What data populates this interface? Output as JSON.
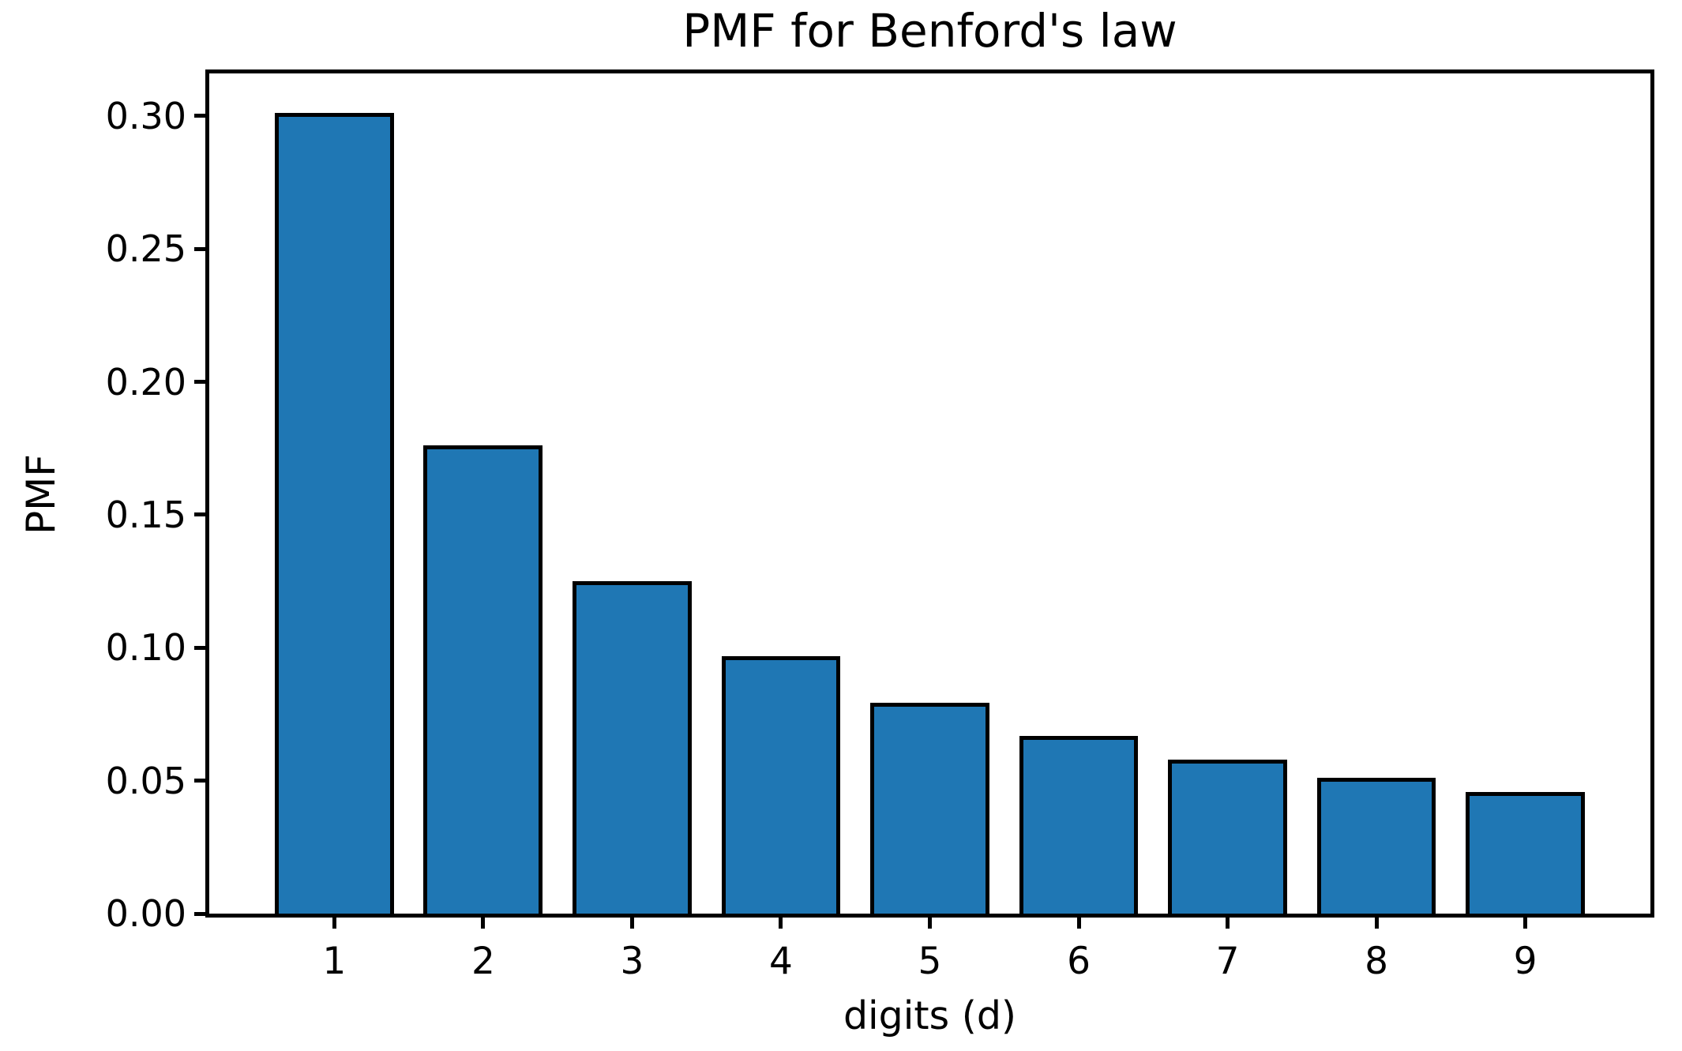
{
  "chart_data": {
    "type": "bar",
    "title": "PMF for Benford's law",
    "xlabel": "digits (d)",
    "ylabel": "PMF",
    "categories": [
      1,
      2,
      3,
      4,
      5,
      6,
      7,
      8,
      9
    ],
    "values": [
      0.30103,
      0.17609,
      0.12494,
      0.09691,
      0.07918,
      0.06695,
      0.05799,
      0.05115,
      0.04576
    ],
    "series_name": "PMF",
    "ytick_values": [
      0.0,
      0.05,
      0.1,
      0.15,
      0.2,
      0.25,
      0.3
    ],
    "ytick_labels": [
      "0.00",
      "0.05",
      "0.10",
      "0.15",
      "0.20",
      "0.25",
      "0.30"
    ],
    "xtick_labels": [
      "1",
      "2",
      "3",
      "4",
      "5",
      "6",
      "7",
      "8",
      "9"
    ],
    "xlim": [
      0.16,
      9.84
    ],
    "ylim": [
      0.0,
      0.316
    ],
    "bar_width_units": 0.8,
    "bar_fill_color": "#1f77b4",
    "bar_edge_color": "#000000",
    "axis_color": "#000000",
    "background_color": "#ffffff",
    "grid": false,
    "legend": null
  }
}
